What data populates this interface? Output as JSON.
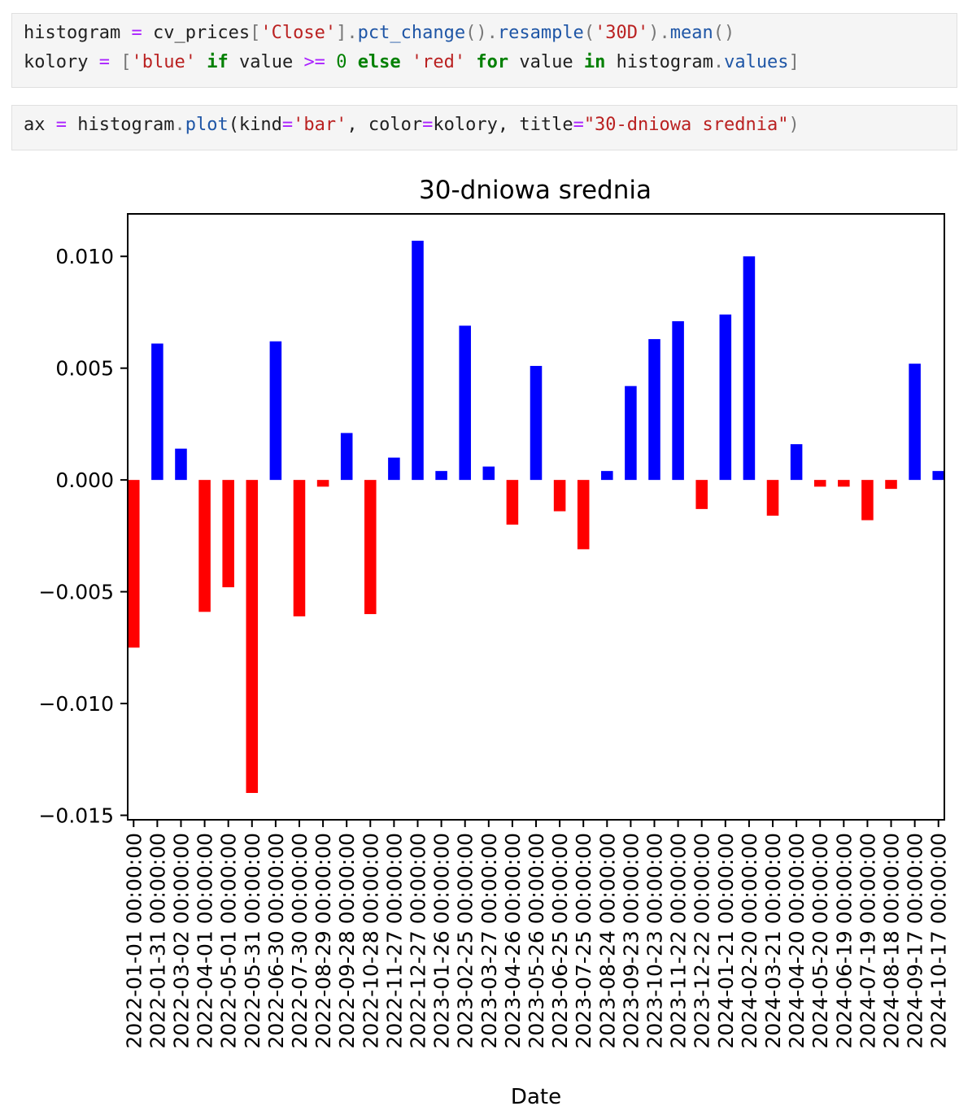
{
  "code_cells": [
    {
      "lines": [
        [
          {
            "t": "histogram",
            "c": "var"
          },
          {
            "t": " ",
            "c": "var"
          },
          {
            "t": "=",
            "c": "op"
          },
          {
            "t": " cv_prices",
            "c": "var"
          },
          {
            "t": "[",
            "c": "punc"
          },
          {
            "t": "'Close'",
            "c": "str"
          },
          {
            "t": "]",
            "c": "punc"
          },
          {
            "t": ".",
            "c": "punc"
          },
          {
            "t": "pct_change",
            "c": "fn"
          },
          {
            "t": "().",
            "c": "punc"
          },
          {
            "t": "resample",
            "c": "fn"
          },
          {
            "t": "(",
            "c": "punc"
          },
          {
            "t": "'30D'",
            "c": "str"
          },
          {
            "t": ").",
            "c": "punc"
          },
          {
            "t": "mean",
            "c": "fn"
          },
          {
            "t": "()",
            "c": "punc"
          }
        ],
        [
          {
            "t": "kolory",
            "c": "var"
          },
          {
            "t": " ",
            "c": "var"
          },
          {
            "t": "=",
            "c": "op"
          },
          {
            "t": " ",
            "c": "var"
          },
          {
            "t": "[",
            "c": "punc"
          },
          {
            "t": "'blue'",
            "c": "str"
          },
          {
            "t": " ",
            "c": "var"
          },
          {
            "t": "if",
            "c": "kw"
          },
          {
            "t": " value ",
            "c": "var"
          },
          {
            "t": ">=",
            "c": "op"
          },
          {
            "t": " ",
            "c": "var"
          },
          {
            "t": "0",
            "c": "num"
          },
          {
            "t": " ",
            "c": "var"
          },
          {
            "t": "else",
            "c": "kw"
          },
          {
            "t": " ",
            "c": "var"
          },
          {
            "t": "'red'",
            "c": "str"
          },
          {
            "t": " ",
            "c": "var"
          },
          {
            "t": "for",
            "c": "kw"
          },
          {
            "t": " value ",
            "c": "var"
          },
          {
            "t": "in",
            "c": "kw"
          },
          {
            "t": " histogram",
            "c": "var"
          },
          {
            "t": ".",
            "c": "punc"
          },
          {
            "t": "values",
            "c": "fn"
          },
          {
            "t": "]",
            "c": "punc"
          }
        ]
      ]
    },
    {
      "lines": [
        [
          {
            "t": "ax",
            "c": "var"
          },
          {
            "t": " ",
            "c": "var"
          },
          {
            "t": "=",
            "c": "op"
          },
          {
            "t": " histogram",
            "c": "var"
          },
          {
            "t": ".",
            "c": "punc"
          },
          {
            "t": "plot",
            "c": "fn"
          },
          {
            "t": "(kind",
            "c": "var"
          },
          {
            "t": "=",
            "c": "op"
          },
          {
            "t": "'bar'",
            "c": "str"
          },
          {
            "t": ", color",
            "c": "var"
          },
          {
            "t": "=",
            "c": "op"
          },
          {
            "t": "kolory, title",
            "c": "var"
          },
          {
            "t": "=",
            "c": "op"
          },
          {
            "t": "\"30-dniowa srednia\"",
            "c": "str"
          },
          {
            "t": ")",
            "c": "punc"
          }
        ]
      ]
    }
  ],
  "chart_data": {
    "type": "bar",
    "title": "30-dniowa srednia",
    "xlabel": "Date",
    "ylabel": "",
    "ylim": [
      -0.0152,
      0.0119
    ],
    "yticks": [
      0.01,
      0.005,
      0.0,
      -0.005,
      -0.01,
      -0.015
    ],
    "ytick_labels": [
      "0.010",
      "0.005",
      "0.000",
      "−0.005",
      "−0.010",
      "−0.015"
    ],
    "grid": false,
    "legend": false,
    "positive_color": "#0000ff",
    "negative_color": "#ff0000",
    "categories": [
      "2022-01-01 00:00:00",
      "2022-01-31 00:00:00",
      "2022-03-02 00:00:00",
      "2022-04-01 00:00:00",
      "2022-05-01 00:00:00",
      "2022-05-31 00:00:00",
      "2022-06-30 00:00:00",
      "2022-07-30 00:00:00",
      "2022-08-29 00:00:00",
      "2022-09-28 00:00:00",
      "2022-10-28 00:00:00",
      "2022-11-27 00:00:00",
      "2022-12-27 00:00:00",
      "2023-01-26 00:00:00",
      "2023-02-25 00:00:00",
      "2023-03-27 00:00:00",
      "2023-04-26 00:00:00",
      "2023-05-26 00:00:00",
      "2023-06-25 00:00:00",
      "2023-07-25 00:00:00",
      "2023-08-24 00:00:00",
      "2023-09-23 00:00:00",
      "2023-10-23 00:00:00",
      "2023-11-22 00:00:00",
      "2023-12-22 00:00:00",
      "2024-01-21 00:00:00",
      "2024-02-20 00:00:00",
      "2024-03-21 00:00:00",
      "2024-04-20 00:00:00",
      "2024-05-20 00:00:00",
      "2024-06-19 00:00:00",
      "2024-07-19 00:00:00",
      "2024-08-18 00:00:00",
      "2024-09-17 00:00:00",
      "2024-10-17 00:00:00"
    ],
    "values": [
      -0.0075,
      0.0061,
      0.0014,
      -0.0059,
      -0.0048,
      -0.014,
      0.0062,
      -0.0061,
      -0.0003,
      0.0021,
      -0.006,
      0.001,
      0.0107,
      0.0004,
      0.0069,
      0.0006,
      -0.002,
      0.0051,
      -0.0014,
      -0.0031,
      0.0004,
      0.0042,
      0.0063,
      0.0071,
      -0.0013,
      0.0074,
      0.01,
      -0.0016,
      0.0016,
      -0.0003,
      -0.0003,
      -0.0018,
      -0.0004,
      0.0052,
      0.0004
    ]
  }
}
